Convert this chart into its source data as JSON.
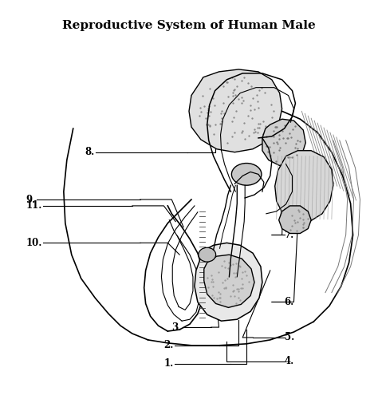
{
  "title": "Reproductive System of Human Male",
  "title_fontsize": 11,
  "title_fontweight": "bold",
  "bg_color": "#ffffff",
  "label_fontsize": 8.5,
  "line_color": "#000000"
}
